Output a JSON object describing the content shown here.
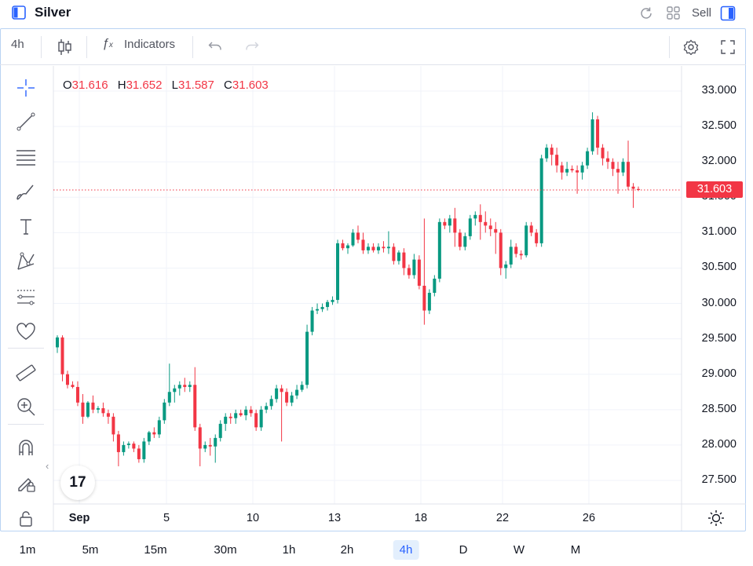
{
  "header": {
    "title": "Silver",
    "sell_label": "Sell",
    "icons": [
      "sidebar-panel-icon",
      "refresh-icon",
      "layout-grid-icon",
      "panel-toggle-icon"
    ]
  },
  "toolbar": {
    "interval": "4h",
    "indicators_label": "Indicators",
    "icons": [
      "candles-icon",
      "fx-icon",
      "undo-icon",
      "redo-icon",
      "settings-icon",
      "fullscreen-icon"
    ]
  },
  "ohlc": {
    "o_key": "O",
    "o_val": "31.616",
    "h_key": "H",
    "h_val": "31.652",
    "l_key": "L",
    "l_val": "31.587",
    "c_key": "C",
    "c_val": "31.603"
  },
  "price_axis": [
    "33.000",
    "32.500",
    "32.000",
    "31.500",
    "31.000",
    "30.500",
    "30.000",
    "29.500",
    "29.000",
    "28.500",
    "28.000",
    "27.500"
  ],
  "current_price": "31.603",
  "date_axis": [
    "Sep",
    "5",
    "10",
    "13",
    "18",
    "22",
    "26"
  ],
  "timeframes": [
    "1m",
    "5m",
    "15m",
    "30m",
    "1h",
    "2h",
    "4h",
    "D",
    "W",
    "M"
  ],
  "active_timeframe": "4h",
  "logo_text": "17",
  "colors": {
    "up": "#089981",
    "down": "#f23645",
    "accent": "#2962ff",
    "grid": "#f0f3fa"
  },
  "left_tools": [
    "crosshair-icon",
    "trend-line-icon",
    "fib-lines-icon",
    "brush-icon",
    "text-icon",
    "pattern-icon",
    "forecast-icon",
    "heart-icon",
    "ruler-icon",
    "zoom-in-icon",
    "magnet-icon",
    "lock-pencil-icon",
    "lock-icon"
  ],
  "chart_data": {
    "type": "candlestick",
    "title": "Silver",
    "interval": "4h",
    "ylim": [
      27.2,
      33.2
    ],
    "x_ticks": [
      "Sep",
      "5",
      "10",
      "13",
      "18",
      "22",
      "26"
    ],
    "last": {
      "open": 31.616,
      "high": 31.652,
      "low": 31.587,
      "close": 31.603
    },
    "candles": [
      [
        29.38,
        29.55,
        29.3,
        29.52
      ],
      [
        29.52,
        29.55,
        28.9,
        29.0
      ],
      [
        29.0,
        29.05,
        28.8,
        28.85
      ],
      [
        28.85,
        28.9,
        28.8,
        28.82
      ],
      [
        28.82,
        28.9,
        28.55,
        28.6
      ],
      [
        28.6,
        28.72,
        28.3,
        28.4
      ],
      [
        28.4,
        28.62,
        28.38,
        28.6
      ],
      [
        28.6,
        28.7,
        28.45,
        28.5
      ],
      [
        28.5,
        28.55,
        28.45,
        28.52
      ],
      [
        28.52,
        28.6,
        28.4,
        28.45
      ],
      [
        28.45,
        28.5,
        28.3,
        28.4
      ],
      [
        28.4,
        28.45,
        28.05,
        28.15
      ],
      [
        28.15,
        28.2,
        27.7,
        27.9
      ],
      [
        27.9,
        28.05,
        27.85,
        28.0
      ],
      [
        28.0,
        28.05,
        27.95,
        28.02
      ],
      [
        28.02,
        28.05,
        27.9,
        27.95
      ],
      [
        27.95,
        28.0,
        27.75,
        27.8
      ],
      [
        27.8,
        28.1,
        27.75,
        28.05
      ],
      [
        28.05,
        28.2,
        28.0,
        28.18
      ],
      [
        28.18,
        28.25,
        28.1,
        28.15
      ],
      [
        28.15,
        28.4,
        28.1,
        28.35
      ],
      [
        28.35,
        28.65,
        28.3,
        28.6
      ],
      [
        28.6,
        29.15,
        28.55,
        28.75
      ],
      [
        28.75,
        28.85,
        28.6,
        28.8
      ],
      [
        28.8,
        28.9,
        28.7,
        28.85
      ],
      [
        28.85,
        28.95,
        28.75,
        28.82
      ],
      [
        28.82,
        28.9,
        28.75,
        28.85
      ],
      [
        28.85,
        29.1,
        28.2,
        28.25
      ],
      [
        28.25,
        28.3,
        27.7,
        27.95
      ],
      [
        27.95,
        28.05,
        27.9,
        28.0
      ],
      [
        28.0,
        28.1,
        27.85,
        27.98
      ],
      [
        27.98,
        28.15,
        27.75,
        28.1
      ],
      [
        28.1,
        28.35,
        28.05,
        28.3
      ],
      [
        28.3,
        28.45,
        28.2,
        28.4
      ],
      [
        28.4,
        28.45,
        28.3,
        28.38
      ],
      [
        28.38,
        28.5,
        28.3,
        28.45
      ],
      [
        28.45,
        28.5,
        28.4,
        28.42
      ],
      [
        28.42,
        28.55,
        28.35,
        28.5
      ],
      [
        28.5,
        28.55,
        28.4,
        28.45
      ],
      [
        28.45,
        28.5,
        28.2,
        28.25
      ],
      [
        28.25,
        28.55,
        28.2,
        28.5
      ],
      [
        28.5,
        28.6,
        28.45,
        28.55
      ],
      [
        28.55,
        28.7,
        28.5,
        28.65
      ],
      [
        28.65,
        28.85,
        28.6,
        28.8
      ],
      [
        28.8,
        28.85,
        28.05,
        28.75
      ],
      [
        28.75,
        28.8,
        28.55,
        28.6
      ],
      [
        28.6,
        28.75,
        28.55,
        28.7
      ],
      [
        28.7,
        28.85,
        28.65,
        28.78
      ],
      [
        28.78,
        28.9,
        28.75,
        28.85
      ],
      [
        28.85,
        29.7,
        28.8,
        29.6
      ],
      [
        29.6,
        29.95,
        29.55,
        29.9
      ],
      [
        29.9,
        30.0,
        29.85,
        29.92
      ],
      [
        29.92,
        30.0,
        29.88,
        29.95
      ],
      [
        29.95,
        30.05,
        29.9,
        30.02
      ],
      [
        30.02,
        30.1,
        29.98,
        30.05
      ],
      [
        30.05,
        30.9,
        30.0,
        30.85
      ],
      [
        30.85,
        30.9,
        30.75,
        30.78
      ],
      [
        30.78,
        30.85,
        30.7,
        30.82
      ],
      [
        30.82,
        31.05,
        30.8,
        31.0
      ],
      [
        31.0,
        31.1,
        30.85,
        30.9
      ],
      [
        30.9,
        31.0,
        30.7,
        30.75
      ],
      [
        30.75,
        30.85,
        30.7,
        30.8
      ],
      [
        30.8,
        30.85,
        30.72,
        30.75
      ],
      [
        30.75,
        30.85,
        30.7,
        30.8
      ],
      [
        30.8,
        30.88,
        30.72,
        30.78
      ],
      [
        30.78,
        31.02,
        30.7,
        30.8
      ],
      [
        30.8,
        30.85,
        30.55,
        30.6
      ],
      [
        30.6,
        30.75,
        30.55,
        30.72
      ],
      [
        30.72,
        30.78,
        30.4,
        30.5
      ],
      [
        30.5,
        30.55,
        30.35,
        30.4
      ],
      [
        30.4,
        30.7,
        30.35,
        30.62
      ],
      [
        30.62,
        30.68,
        30.2,
        30.25
      ],
      [
        30.25,
        31.2,
        29.7,
        29.9
      ],
      [
        29.9,
        30.2,
        29.85,
        30.15
      ],
      [
        30.15,
        30.4,
        30.1,
        30.35
      ],
      [
        30.35,
        31.2,
        30.3,
        31.15
      ],
      [
        31.15,
        31.2,
        31.05,
        31.1
      ],
      [
        31.1,
        31.25,
        31.0,
        31.2
      ],
      [
        31.2,
        31.35,
        30.8,
        31.0
      ],
      [
        31.0,
        31.05,
        30.75,
        30.8
      ],
      [
        30.8,
        31.0,
        30.75,
        30.95
      ],
      [
        30.95,
        31.25,
        30.9,
        31.2
      ],
      [
        31.2,
        31.3,
        31.1,
        31.25
      ],
      [
        31.25,
        31.4,
        30.9,
        31.15
      ],
      [
        31.15,
        31.3,
        31.0,
        31.1
      ],
      [
        31.1,
        31.2,
        30.95,
        31.05
      ],
      [
        31.05,
        31.15,
        30.7,
        31.0
      ],
      [
        31.0,
        31.05,
        30.4,
        30.5
      ],
      [
        30.5,
        30.6,
        30.35,
        30.55
      ],
      [
        30.55,
        30.9,
        30.5,
        30.8
      ],
      [
        30.8,
        30.85,
        30.65,
        30.7
      ],
      [
        30.7,
        30.75,
        30.62,
        30.68
      ],
      [
        30.68,
        31.15,
        30.65,
        31.1
      ],
      [
        31.1,
        31.15,
        30.95,
        31.0
      ],
      [
        31.0,
        31.05,
        30.8,
        30.85
      ],
      [
        30.85,
        32.1,
        30.8,
        32.05
      ],
      [
        32.05,
        32.25,
        32.0,
        32.2
      ],
      [
        32.2,
        32.25,
        31.95,
        32.1
      ],
      [
        32.1,
        32.2,
        31.85,
        31.95
      ],
      [
        31.95,
        32.0,
        31.75,
        31.85
      ],
      [
        31.85,
        32.0,
        31.8,
        31.9
      ],
      [
        31.9,
        31.95,
        31.85,
        31.88
      ],
      [
        31.88,
        31.95,
        31.55,
        31.85
      ],
      [
        31.85,
        32.0,
        31.75,
        31.95
      ],
      [
        31.95,
        32.2,
        31.9,
        32.15
      ],
      [
        32.15,
        32.7,
        32.1,
        32.6
      ],
      [
        32.6,
        32.65,
        32.1,
        32.2
      ],
      [
        32.2,
        32.25,
        31.95,
        32.05
      ],
      [
        32.05,
        32.15,
        31.9,
        32.0
      ],
      [
        32.0,
        32.05,
        31.8,
        31.9
      ],
      [
        31.9,
        32.0,
        31.55,
        31.85
      ],
      [
        31.85,
        32.05,
        31.8,
        32.0
      ],
      [
        32.0,
        32.3,
        31.6,
        31.65
      ],
      [
        31.65,
        31.7,
        31.35,
        31.62
      ],
      [
        31.616,
        31.652,
        31.587,
        31.603
      ]
    ]
  }
}
